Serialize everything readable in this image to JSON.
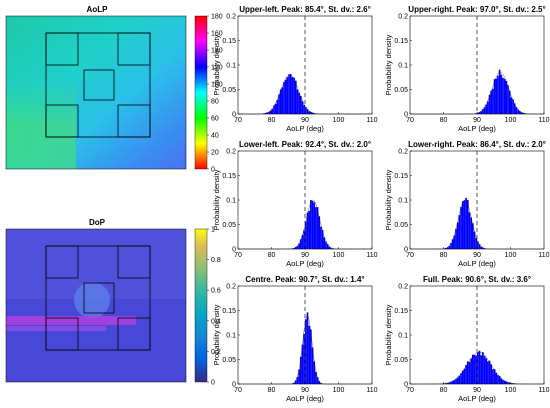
{
  "chart_data": [
    {
      "type": "heatmap",
      "title": "AoLP",
      "colormap": "hsv",
      "colorbar_ticks": [
        "180",
        "160",
        "140",
        "120",
        "100",
        "80",
        "60",
        "40",
        "20",
        "0"
      ],
      "clim": [
        0,
        180
      ],
      "regions": [
        "upper-left",
        "upper-right",
        "centre",
        "lower-left",
        "lower-right"
      ]
    },
    {
      "type": "heatmap",
      "title": "DoP",
      "colormap": "parula",
      "colorbar_ticks": [
        "1",
        "0.8",
        "0.6",
        "0.4",
        "0.2",
        "0"
      ],
      "clim": [
        0,
        1
      ],
      "regions": [
        "upper-left",
        "upper-right",
        "centre",
        "lower-left",
        "lower-right"
      ]
    },
    {
      "type": "bar",
      "title": "Upper-left. Peak: 85.4°, St. dv.: 2.6°",
      "xlabel": "AoLP (deg)",
      "ylabel": "Probability density",
      "xlim": [
        70,
        110
      ],
      "ylim": [
        0,
        0.2
      ],
      "xticks": [
        "70",
        "80",
        "90",
        "100",
        "110"
      ],
      "yticks": [
        "0",
        "0.05",
        "0.1",
        "0.15",
        "0.2"
      ],
      "reference_line_x": 90,
      "peak": 85.4,
      "std": 2.6,
      "peak_density": 0.08,
      "bar_color": "#0000ff",
      "grid": false
    },
    {
      "type": "bar",
      "title": "Upper-right. Peak: 97.0°, St. dv.: 2.5°",
      "xlabel": "AoLP (deg)",
      "ylabel": "Probability density",
      "xlim": [
        70,
        110
      ],
      "ylim": [
        0,
        0.2
      ],
      "xticks": [
        "70",
        "80",
        "90",
        "100",
        "110"
      ],
      "yticks": [
        "0",
        "0.05",
        "0.1",
        "0.15",
        "0.2"
      ],
      "reference_line_x": 90,
      "peak": 97.0,
      "std": 2.5,
      "peak_density": 0.085,
      "bar_color": "#0000ff",
      "grid": false
    },
    {
      "type": "bar",
      "title": "Lower-left. Peak: 92.4°, St. dv.: 2.0°",
      "xlabel": "AoLP (deg)",
      "ylabel": "Probability density",
      "xlim": [
        70,
        110
      ],
      "ylim": [
        0,
        0.2
      ],
      "xticks": [
        "70",
        "80",
        "90",
        "100",
        "110"
      ],
      "yticks": [
        "0",
        "0.05",
        "0.1",
        "0.15",
        "0.2"
      ],
      "reference_line_x": 90,
      "peak": 92.4,
      "std": 2.0,
      "peak_density": 0.1,
      "bar_color": "#0000ff",
      "grid": false
    },
    {
      "type": "bar",
      "title": "Lower-right. Peak: 86.4°, St. dv.: 2.0°",
      "xlabel": "AoLP (deg)",
      "ylabel": "Probability density",
      "xlim": [
        70,
        110
      ],
      "ylim": [
        0,
        0.2
      ],
      "xticks": [
        "70",
        "80",
        "90",
        "100",
        "110"
      ],
      "yticks": [
        "0",
        "0.05",
        "0.1",
        "0.15",
        "0.2"
      ],
      "reference_line_x": 90,
      "peak": 86.4,
      "std": 2.0,
      "peak_density": 0.1,
      "bar_color": "#0000ff",
      "grid": false
    },
    {
      "type": "bar",
      "title": "Centre. Peak: 90.7°, St. dv.: 1.4°",
      "xlabel": "AoLP (deg)",
      "ylabel": "Probability density",
      "xlim": [
        70,
        110
      ],
      "ylim": [
        0,
        0.2
      ],
      "xticks": [
        "70",
        "80",
        "90",
        "100",
        "110"
      ],
      "yticks": [
        "0",
        "0.05",
        "0.1",
        "0.15",
        "0.2"
      ],
      "reference_line_x": 90,
      "peak": 90.7,
      "std": 1.4,
      "peak_density": 0.14,
      "bar_color": "#0000ff",
      "grid": false
    },
    {
      "type": "bar",
      "title": "Full. Peak: 90.6°, St. dv.: 3.6°",
      "xlabel": "AoLP (deg)",
      "ylabel": "Probability density",
      "xlim": [
        70,
        110
      ],
      "ylim": [
        0,
        0.2
      ],
      "xticks": [
        "70",
        "80",
        "90",
        "100",
        "110"
      ],
      "yticks": [
        "0",
        "0.05",
        "0.1",
        "0.15",
        "0.2"
      ],
      "reference_line_x": 90,
      "peak": 90.6,
      "std": 3.6,
      "peak_density": 0.065,
      "bar_color": "#0000ff",
      "grid": false
    }
  ]
}
